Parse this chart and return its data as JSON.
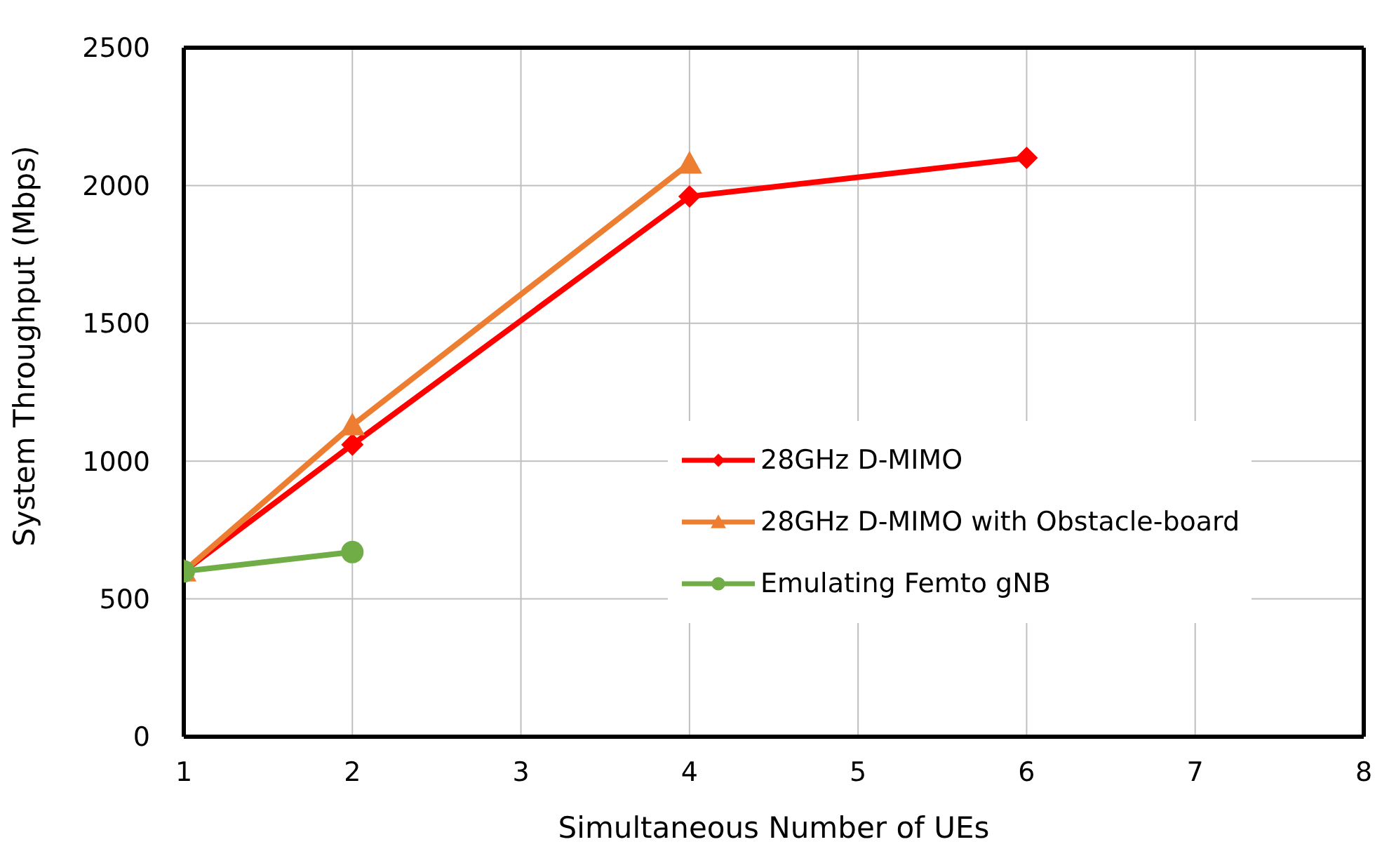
{
  "chart_data": {
    "type": "line",
    "xlabel": "Simultaneous Number of UEs",
    "ylabel": "System Throughput (Mbps)",
    "xlim": [
      1,
      8
    ],
    "xticks": [
      1,
      2,
      3,
      4,
      5,
      6,
      7,
      8
    ],
    "ylim": [
      0,
      2500
    ],
    "yticks": [
      0,
      500,
      1000,
      1500,
      2000,
      2500
    ],
    "grid": true,
    "legend": "right",
    "series": [
      {
        "name": "28GHz D-MIMO",
        "color": "#ff0000",
        "marker": "diamond",
        "x": [
          1,
          2,
          4,
          6
        ],
        "values": [
          600,
          1060,
          1960,
          2100
        ]
      },
      {
        "name": "28GHz D-MIMO with Obstacle-board",
        "color": "#ed7d31",
        "marker": "triangle",
        "x": [
          1,
          2,
          4
        ],
        "values": [
          600,
          1130,
          2080
        ]
      },
      {
        "name": "Emulating Femto gNB",
        "color": "#70ad47",
        "marker": "circle",
        "x": [
          1,
          2
        ],
        "values": [
          600,
          670
        ]
      }
    ]
  }
}
